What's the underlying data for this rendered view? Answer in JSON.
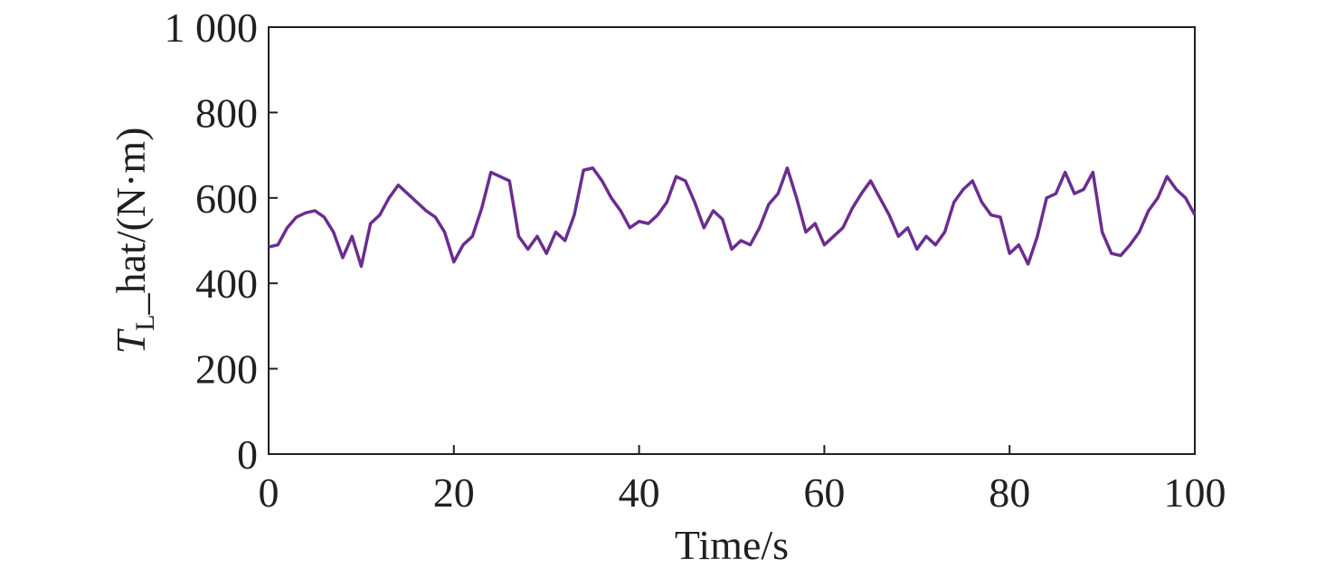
{
  "chart_data": {
    "type": "line",
    "ylabel": {
      "main": "T",
      "sub": "L",
      "rest": "_hat/(N·m)"
    },
    "xlabel": "Time/s",
    "x": [
      0,
      1,
      2,
      3,
      4,
      5,
      6,
      7,
      8,
      9,
      10,
      11,
      12,
      13,
      14,
      15,
      16,
      17,
      18,
      19,
      20,
      21,
      22,
      23,
      24,
      25,
      26,
      27,
      28,
      29,
      30,
      31,
      32,
      33,
      34,
      35,
      36,
      37,
      38,
      39,
      40,
      41,
      42,
      43,
      44,
      45,
      46,
      47,
      48,
      49,
      50,
      51,
      52,
      53,
      54,
      55,
      56,
      57,
      58,
      59,
      60,
      61,
      62,
      63,
      64,
      65,
      66,
      67,
      68,
      69,
      70,
      71,
      72,
      73,
      74,
      75,
      76,
      77,
      78,
      79,
      80,
      81,
      82,
      83,
      84,
      85,
      86,
      87,
      88,
      89,
      90,
      91,
      92,
      93,
      94,
      95,
      96,
      97,
      98,
      99,
      100
    ],
    "values": [
      485,
      490,
      530,
      555,
      565,
      570,
      555,
      520,
      460,
      510,
      440,
      540,
      560,
      600,
      630,
      610,
      590,
      570,
      555,
      520,
      450,
      490,
      510,
      575,
      660,
      650,
      640,
      510,
      480,
      510,
      470,
      520,
      500,
      560,
      665,
      670,
      640,
      600,
      570,
      530,
      545,
      540,
      560,
      590,
      650,
      640,
      590,
      530,
      570,
      550,
      480,
      500,
      490,
      530,
      585,
      610,
      670,
      600,
      520,
      540,
      490,
      510,
      530,
      575,
      610,
      640,
      600,
      560,
      510,
      530,
      480,
      510,
      490,
      520,
      590,
      620,
      640,
      590,
      560,
      555,
      470,
      490,
      445,
      510,
      600,
      610,
      660,
      610,
      620,
      660,
      520,
      470,
      465,
      490,
      520,
      570,
      600,
      650,
      620,
      600,
      560
    ],
    "color": "#6b2d8f",
    "xlim": [
      0,
      100
    ],
    "xticks": [
      0,
      20,
      40,
      60,
      80,
      100
    ],
    "ylim": [
      0,
      1000
    ],
    "yticks": [
      0,
      200,
      400,
      600,
      800,
      {
        "value": 1000,
        "label": "1 000"
      }
    ]
  }
}
